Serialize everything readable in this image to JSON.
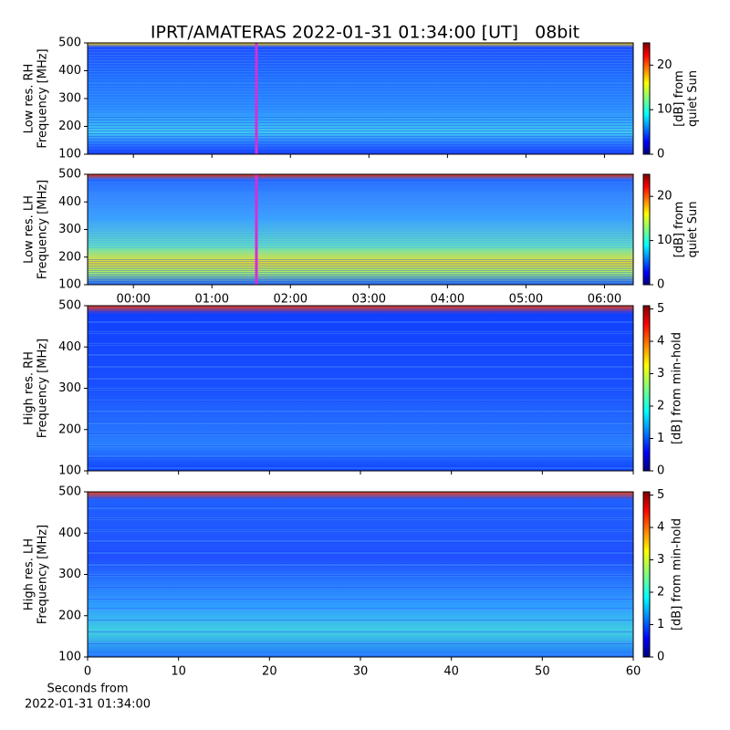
{
  "chart_data": [
    {
      "type": "heatmap",
      "title": "IPRT/AMATERAS 2022-01-31 01:34:00 [UT]   08bit",
      "ylabel": [
        "Low res. RH",
        "Frequency [MHz]"
      ],
      "ylim": [
        100,
        500
      ],
      "yticks": [
        100,
        200,
        300,
        400,
        500
      ],
      "colorbar_label": [
        "[dB] from",
        "quiet Sun"
      ],
      "clim": [
        0,
        25
      ],
      "cticks": [
        0,
        10,
        20
      ],
      "colormap": "jet",
      "cursor_time": "01:34",
      "cursor_color": "#d62fd6"
    },
    {
      "type": "heatmap",
      "ylabel": [
        "Low res. LH",
        "Frequency [MHz]"
      ],
      "ylim": [
        100,
        500
      ],
      "yticks": [
        100,
        200,
        300,
        400,
        500
      ],
      "xlim": [
        "23:25",
        "06:22"
      ],
      "xticks": [
        "00:00",
        "01:00",
        "02:00",
        "03:00",
        "04:00",
        "05:00",
        "06:00"
      ],
      "colorbar_label": [
        "[dB] from",
        "quiet Sun"
      ],
      "clim": [
        0,
        25
      ],
      "cticks": [
        0,
        10,
        20
      ],
      "colormap": "jet",
      "cursor_time": "01:34",
      "cursor_color": "#d62fd6"
    },
    {
      "type": "heatmap",
      "ylabel": [
        "High res. RH",
        "Frequency [MHz]"
      ],
      "ylim": [
        100,
        500
      ],
      "yticks": [
        100,
        200,
        300,
        400,
        500
      ],
      "colorbar_label": [
        "[dB] from min-hold"
      ],
      "clim": [
        0,
        5.1
      ],
      "cticks": [
        0,
        1,
        2,
        3,
        4,
        5
      ],
      "colormap": "jet"
    },
    {
      "type": "heatmap",
      "ylabel": [
        "High res. LH",
        "Frequency [MHz]"
      ],
      "ylim": [
        100,
        500
      ],
      "yticks": [
        100,
        200,
        300,
        400,
        500
      ],
      "xlim": [
        0,
        60
      ],
      "xticks": [
        0,
        10,
        20,
        30,
        40,
        50,
        60
      ],
      "xlabel": [
        "Seconds from",
        "2022-01-31 01:34:00"
      ],
      "colorbar_label": [
        "[dB] from min-hold"
      ],
      "clim": [
        0,
        5.1
      ],
      "cticks": [
        0,
        1,
        2,
        3,
        4,
        5
      ],
      "colormap": "jet"
    }
  ]
}
